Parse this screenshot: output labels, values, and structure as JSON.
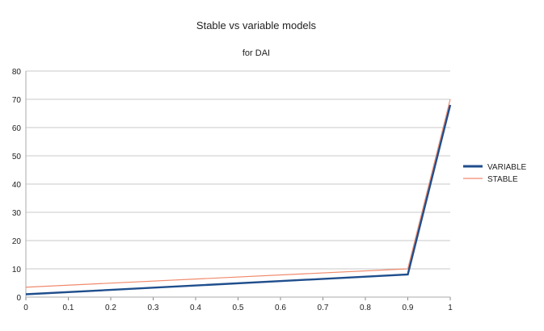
{
  "chart_data": {
    "type": "line",
    "title": "Stable vs variable models",
    "subtitle": "for DAI",
    "xlabel": "",
    "ylabel": "",
    "x": [
      0,
      0.9,
      1
    ],
    "xlim": [
      0,
      1
    ],
    "ylim": [
      0,
      80
    ],
    "x_ticks": [
      "0",
      "0.1",
      "0.2",
      "0.3",
      "0.4",
      "0.5",
      "0.6",
      "0.7",
      "0.8",
      "0.9",
      "1"
    ],
    "y_ticks": [
      "0",
      "10",
      "20",
      "30",
      "40",
      "50",
      "60",
      "70",
      "80"
    ],
    "grid": true,
    "legend_position": "right",
    "series": [
      {
        "name": "VARIABLE",
        "color": "#1f4e8c",
        "values": [
          1,
          8,
          68
        ]
      },
      {
        "name": "STABLE",
        "color": "#f08a6c",
        "values": [
          3.5,
          10,
          70
        ]
      }
    ]
  }
}
